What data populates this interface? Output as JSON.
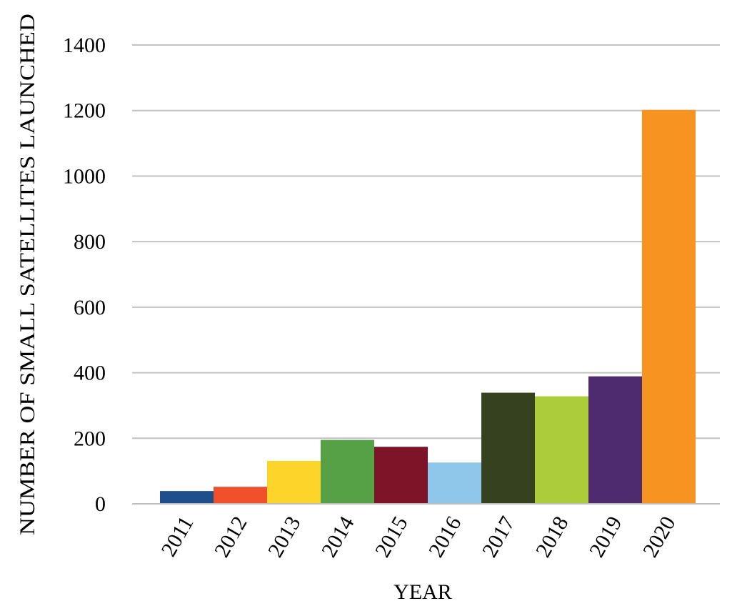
{
  "chart_data": {
    "type": "bar",
    "title": "",
    "xlabel": "YEAR",
    "ylabel": "NUMBER OF SMALL SATELLITES LAUNCHED",
    "categories": [
      "2011",
      "2012",
      "2013",
      "2014",
      "2015",
      "2016",
      "2017",
      "2018",
      "2019",
      "2020"
    ],
    "values": [
      39,
      52,
      131,
      195,
      174,
      126,
      339,
      328,
      389,
      1202
    ],
    "colors": [
      "#1f4e8c",
      "#f0502a",
      "#fdd52a",
      "#56a046",
      "#7d1427",
      "#8fc7ea",
      "#364120",
      "#abcd3a",
      "#4e2a6e",
      "#f79421"
    ],
    "yticks": [
      "0",
      "200",
      "400",
      "600",
      "800",
      "1000",
      "1200",
      "1400"
    ],
    "ylim": [
      0,
      1400
    ],
    "grid": true,
    "legend": "none"
  }
}
